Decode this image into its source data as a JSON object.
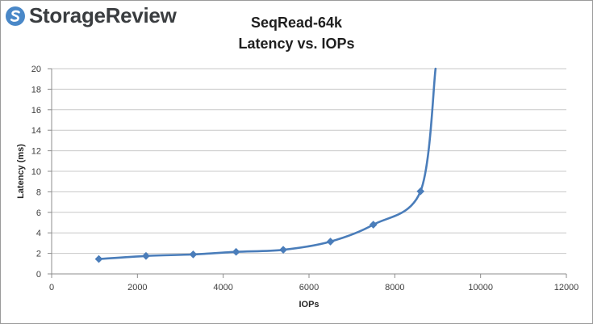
{
  "brand": {
    "name": "StorageReview",
    "logo_color": "#4a88c8"
  },
  "chart_data": {
    "type": "line",
    "title": "SeqRead-64k",
    "subtitle": "Latency vs. IOPs",
    "xlabel": "IOPs",
    "ylabel": "Latency (ms)",
    "xlim": [
      0,
      12000
    ],
    "ylim": [
      0,
      20
    ],
    "x_ticks": [
      0,
      2000,
      4000,
      6000,
      8000,
      10000,
      12000
    ],
    "y_ticks": [
      0,
      2,
      4,
      6,
      8,
      10,
      12,
      14,
      16,
      18,
      20
    ],
    "grid": "horizontal",
    "legend": "none",
    "series": [
      {
        "color": "#4a7dba",
        "marker": "diamond",
        "x": [
          1100,
          2200,
          3300,
          4300,
          5400,
          6500,
          7500,
          8600,
          8950
        ],
        "y": [
          1.45,
          1.75,
          1.9,
          2.15,
          2.35,
          3.15,
          4.8,
          8.05,
          20
        ],
        "marked": [
          true,
          true,
          true,
          true,
          true,
          true,
          true,
          true,
          false
        ]
      }
    ]
  }
}
